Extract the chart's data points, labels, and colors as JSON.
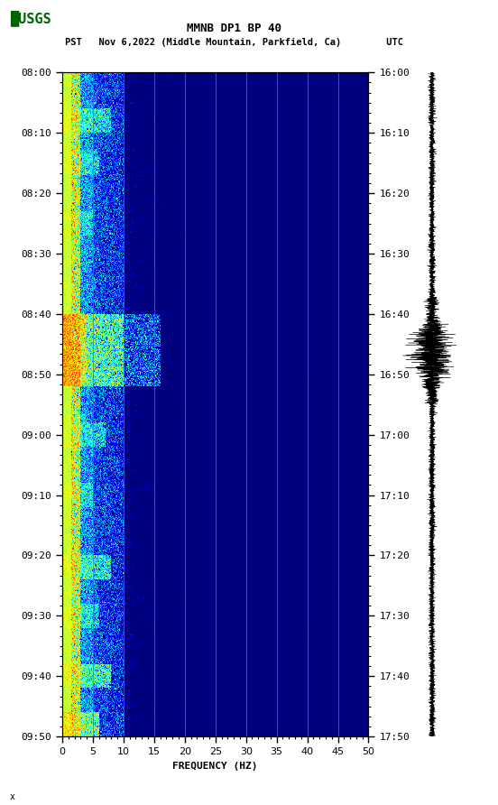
{
  "title_line1": "MMNB DP1 BP 40",
  "title_line2": "PST   Nov 6,2022 (Middle Mountain, Parkfield, Ca)        UTC",
  "xlabel": "FREQUENCY (HZ)",
  "freq_min": 0,
  "freq_max": 50,
  "ytick_pst": [
    "08:00",
    "08:10",
    "08:20",
    "08:30",
    "08:40",
    "08:50",
    "09:00",
    "09:10",
    "09:20",
    "09:30",
    "09:40",
    "09:50"
  ],
  "ytick_utc": [
    "16:00",
    "16:10",
    "16:20",
    "16:30",
    "16:40",
    "16:50",
    "17:00",
    "17:10",
    "17:20",
    "17:30",
    "17:40",
    "17:50"
  ],
  "xticks": [
    0,
    5,
    10,
    15,
    20,
    25,
    30,
    35,
    40,
    45,
    50
  ],
  "vgrid_positions": [
    5,
    10,
    15,
    20,
    25,
    30,
    35,
    40,
    45
  ],
  "figure_bg": "#ffffff",
  "usgs_color": "#006400",
  "fig_width": 5.52,
  "fig_height": 8.92
}
